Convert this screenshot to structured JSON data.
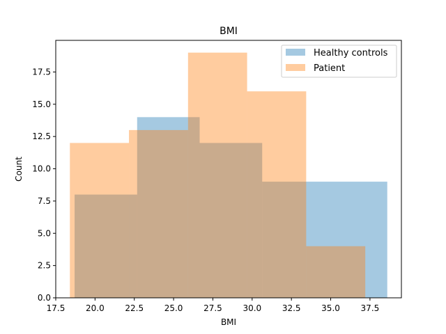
{
  "chart_data": {
    "type": "histogram",
    "title": "BMI",
    "xlabel": "BMI",
    "ylabel": "Count",
    "xlim": [
      17.5,
      39.5
    ],
    "ylim": [
      0,
      19.95
    ],
    "xticks": [
      17.5,
      20.0,
      22.5,
      25.0,
      27.5,
      30.0,
      32.5,
      35.0,
      37.5
    ],
    "xtick_labels": [
      "17.5",
      "20.0",
      "22.5",
      "25.0",
      "27.5",
      "30.0",
      "32.5",
      "35.0",
      "37.5"
    ],
    "yticks": [
      0,
      2.5,
      5,
      7.5,
      10,
      12.5,
      15,
      17.5
    ],
    "ytick_labels": [
      "0.0",
      "2.5",
      "5.0",
      "7.5",
      "10.0",
      "12.5",
      "15.0",
      "17.5"
    ],
    "legend_position": "top-right",
    "series": [
      {
        "name": "Healthy controls",
        "color": "#1f77b4",
        "alpha": 0.4,
        "bin_edges": [
          18.7,
          22.68,
          26.66,
          30.64,
          34.62,
          38.6
        ],
        "counts": [
          8,
          14,
          12,
          9,
          9
        ]
      },
      {
        "name": "Patient",
        "color": "#ff7f0e",
        "alpha": 0.4,
        "bin_edges": [
          18.4,
          22.16,
          25.92,
          29.68,
          33.44,
          37.2
        ],
        "counts": [
          12,
          13,
          19,
          16,
          4
        ]
      }
    ]
  }
}
